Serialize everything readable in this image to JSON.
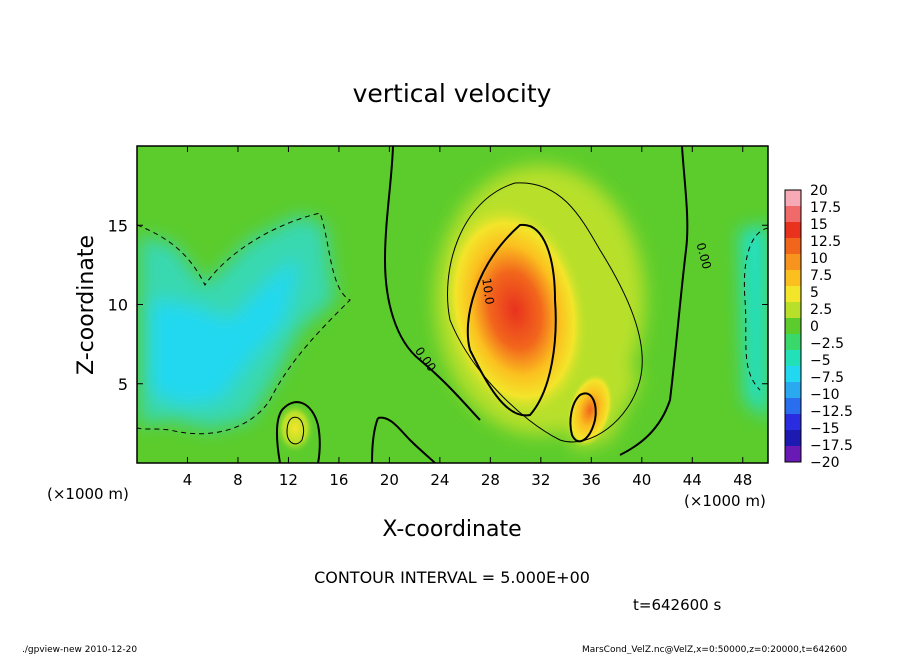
{
  "chart_data": {
    "type": "heatmap",
    "title": "vertical velocity",
    "xlabel": "X-coordinate",
    "ylabel": "Z-coordinate",
    "x_unit_left": "(×1000 m)",
    "x_unit_right": "(×1000 m)",
    "xlim": [
      0,
      50
    ],
    "ylim": [
      0,
      20
    ],
    "x_ticks": [
      4,
      8,
      12,
      16,
      20,
      24,
      28,
      32,
      36,
      40,
      44,
      48
    ],
    "x_tick_labels": [
      "4",
      "8",
      "12",
      "16",
      "20",
      "24",
      "28",
      "32",
      "36",
      "40",
      "44",
      "48"
    ],
    "y_ticks": [
      5,
      10,
      15
    ],
    "y_tick_labels": [
      "5",
      "10",
      "15"
    ],
    "colorbar": {
      "levels": [
        20,
        17.5,
        15,
        12.5,
        10,
        7.5,
        5,
        2.5,
        0,
        -2.5,
        -5,
        -7.5,
        -10,
        -12.5,
        -15,
        -17.5,
        -20
      ],
      "labels": [
        "20",
        "17.5",
        "15",
        "12.5",
        "10",
        "7.5",
        "5",
        "2.5",
        "0",
        "−2.5",
        "−5",
        "−7.5",
        "−10",
        "−12.5",
        "−15",
        "−17.5",
        "−20"
      ],
      "colors": [
        "#f7a9b5",
        "#f06a6a",
        "#e8321e",
        "#f2661c",
        "#f7941d",
        "#fbc01f",
        "#f3e52a",
        "#b8e02a",
        "#5ccc2c",
        "#38d86a",
        "#22e0b8",
        "#22d8f0",
        "#2aa8f0",
        "#2a6ef0",
        "#2a2ce0",
        "#1c1ab0",
        "#6a1ab4"
      ]
    },
    "contour_labels": [
      {
        "text": "10.0",
        "x": 27.5,
        "y": 10.8,
        "rotate": 82
      },
      {
        "text": "0.00",
        "x": 22.6,
        "y": 6.4,
        "rotate": 55
      },
      {
        "text": "0.00",
        "x": 44.6,
        "y": 13.0,
        "rotate": 75
      }
    ],
    "features": {
      "updraft_core": {
        "x": 30,
        "y": 9.5,
        "max": 15
      },
      "secondary_updraft": {
        "x": 35.5,
        "y": 3.5,
        "max": 12
      },
      "small_updraft": {
        "x": 12.6,
        "y": 2.3,
        "max": 7.5
      },
      "downdraft_region": {
        "x": 7,
        "y": 9,
        "min": -10
      }
    },
    "contour_interval_text": "CONTOUR INTERVAL = 5.000E+00",
    "time_text": "t=642600 s",
    "footer_left": "./gpview-new  2010-12-20",
    "footer_right": "MarsCond_VelZ.nc@VelZ,x=0:50000,z=0:20000,t=642600"
  }
}
